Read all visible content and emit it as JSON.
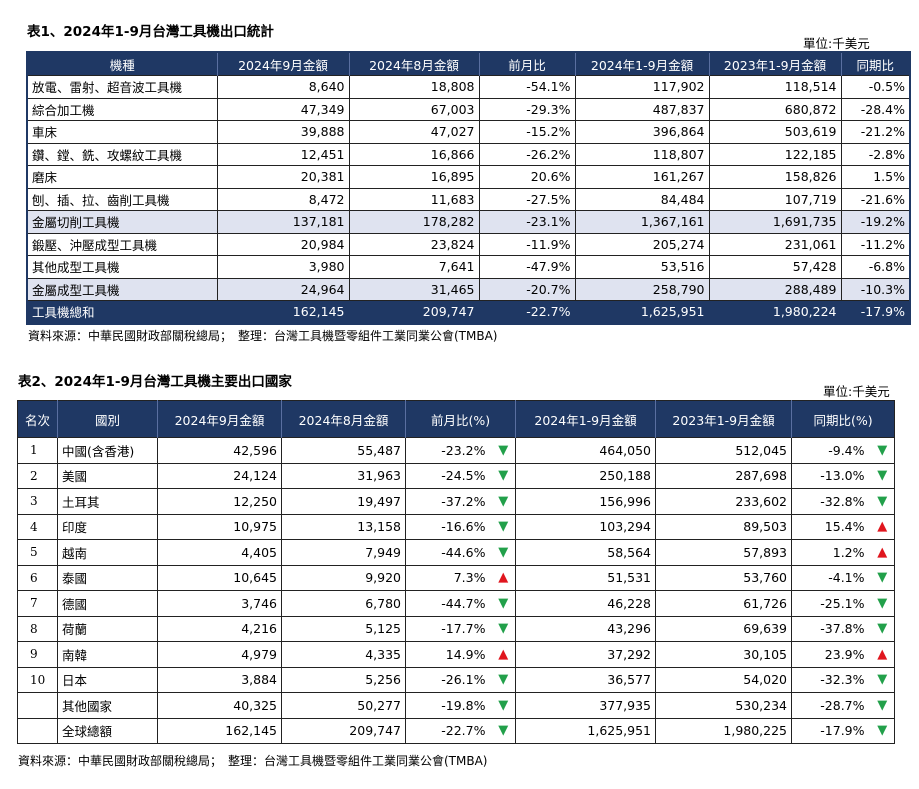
{
  "table1": {
    "title": "表1、2024年1-9月台灣工具機出口統計",
    "unit": "單位:千美元",
    "headers": [
      "機種",
      "2024年9月金額",
      "2024年8月金額",
      "前月比",
      "2024年1-9月金額",
      "2023年1-9月金額",
      "同期比"
    ],
    "rows": [
      {
        "cells": [
          "放電、雷射、超音波工具機",
          "8,640",
          "18,808",
          "-54.1%",
          "117,902",
          "118,514",
          "-0.5%"
        ]
      },
      {
        "cells": [
          "綜合加工機",
          "47,349",
          "67,003",
          "-29.3%",
          "487,837",
          "680,872",
          "-28.4%"
        ]
      },
      {
        "cells": [
          "車床",
          "39,888",
          "47,027",
          "-15.2%",
          "396,864",
          "503,619",
          "-21.2%"
        ]
      },
      {
        "cells": [
          "鑽、鏜、銑、攻螺紋工具機",
          "12,451",
          "16,866",
          "-26.2%",
          "118,807",
          "122,185",
          "-2.8%"
        ]
      },
      {
        "cells": [
          "磨床",
          "20,381",
          "16,895",
          "20.6%",
          "161,267",
          "158,826",
          "1.5%"
        ]
      },
      {
        "cells": [
          "刨、插、拉、齒削工具機",
          "8,472",
          "11,683",
          "-27.5%",
          "84,484",
          "107,719",
          "-21.6%"
        ]
      },
      {
        "cells": [
          "金屬切削工具機",
          "137,181",
          "178,282",
          "-23.1%",
          "1,367,161",
          "1,691,735",
          "-19.2%"
        ]
      },
      {
        "cells": [
          "鍛壓、沖壓成型工具機",
          "20,984",
          "23,824",
          "-11.9%",
          "205,274",
          "231,061",
          "-11.2%"
        ]
      },
      {
        "cells": [
          "其他成型工具機",
          "3,980",
          "7,641",
          "-47.9%",
          "53,516",
          "57,428",
          "-6.8%"
        ]
      },
      {
        "cells": [
          "金屬成型工具機",
          "24,964",
          "31,465",
          "-20.7%",
          "258,790",
          "288,489",
          "-10.3%"
        ]
      },
      {
        "cells": [
          "工具機總和",
          "162,145",
          "209,747",
          "-22.7%",
          "1,625,951",
          "1,980,224",
          "-17.9%"
        ]
      }
    ],
    "source": "資料來源：中華民國財政部關稅總局；　整理：台灣工具機暨零組件工業同業公會(TMBA)"
  },
  "table2": {
    "title": "表2、2024年1-9月台灣工具機主要出口國家",
    "unit": "單位:千美元",
    "headers": [
      "名次",
      "國別",
      "2024年9月金額",
      "2024年8月金額",
      "前月比(%)",
      "2024年1-9月金額",
      "2023年1-9月金額",
      "同期比(%)"
    ],
    "arrow_up": "▲",
    "arrow_down": "▼",
    "colors": {
      "up": "#e0161e",
      "down": "#22a04a",
      "header": "#1f3864",
      "subtotal": "#dfe3f0"
    },
    "rows": [
      {
        "rank": "1",
        "country": "中國(含香港)",
        "sep": "42,596",
        "aug": "55,487",
        "mom": "-23.2%",
        "mom_dir": "down",
        "ytd2024": "464,050",
        "ytd2023": "512,045",
        "yoy": "-9.4%",
        "yoy_dir": "down"
      },
      {
        "rank": "2",
        "country": "美國",
        "sep": "24,124",
        "aug": "31,963",
        "mom": "-24.5%",
        "mom_dir": "down",
        "ytd2024": "250,188",
        "ytd2023": "287,698",
        "yoy": "-13.0%",
        "yoy_dir": "down"
      },
      {
        "rank": "3",
        "country": "土耳其",
        "sep": "12,250",
        "aug": "19,497",
        "mom": "-37.2%",
        "mom_dir": "down",
        "ytd2024": "156,996",
        "ytd2023": "233,602",
        "yoy": "-32.8%",
        "yoy_dir": "down"
      },
      {
        "rank": "4",
        "country": "印度",
        "sep": "10,975",
        "aug": "13,158",
        "mom": "-16.6%",
        "mom_dir": "down",
        "ytd2024": "103,294",
        "ytd2023": "89,503",
        "yoy": "15.4%",
        "yoy_dir": "up"
      },
      {
        "rank": "5",
        "country": "越南",
        "sep": "4,405",
        "aug": "7,949",
        "mom": "-44.6%",
        "mom_dir": "down",
        "ytd2024": "58,564",
        "ytd2023": "57,893",
        "yoy": "1.2%",
        "yoy_dir": "up"
      },
      {
        "rank": "6",
        "country": "泰國",
        "sep": "10,645",
        "aug": "9,920",
        "mom": "7.3%",
        "mom_dir": "up",
        "ytd2024": "51,531",
        "ytd2023": "53,760",
        "yoy": "-4.1%",
        "yoy_dir": "down"
      },
      {
        "rank": "7",
        "country": "德國",
        "sep": "3,746",
        "aug": "6,780",
        "mom": "-44.7%",
        "mom_dir": "down",
        "ytd2024": "46,228",
        "ytd2023": "61,726",
        "yoy": "-25.1%",
        "yoy_dir": "down"
      },
      {
        "rank": "8",
        "country": "荷蘭",
        "sep": "4,216",
        "aug": "5,125",
        "mom": "-17.7%",
        "mom_dir": "down",
        "ytd2024": "43,296",
        "ytd2023": "69,639",
        "yoy": "-37.8%",
        "yoy_dir": "down"
      },
      {
        "rank": "9",
        "country": "南韓",
        "sep": "4,979",
        "aug": "4,335",
        "mom": "14.9%",
        "mom_dir": "up",
        "ytd2024": "37,292",
        "ytd2023": "30,105",
        "yoy": "23.9%",
        "yoy_dir": "up"
      },
      {
        "rank": "10",
        "country": "日本",
        "sep": "3,884",
        "aug": "5,256",
        "mom": "-26.1%",
        "mom_dir": "down",
        "ytd2024": "36,577",
        "ytd2023": "54,020",
        "yoy": "-32.3%",
        "yoy_dir": "down"
      },
      {
        "rank": "",
        "country": "其他國家",
        "sep": "40,325",
        "aug": "50,277",
        "mom": "-19.8%",
        "mom_dir": "down",
        "ytd2024": "377,935",
        "ytd2023": "530,234",
        "yoy": "-28.7%",
        "yoy_dir": "down"
      },
      {
        "rank": "",
        "country": "全球總額",
        "sep": "162,145",
        "aug": "209,747",
        "mom": "-22.7%",
        "mom_dir": "down",
        "ytd2024": "1,625,951",
        "ytd2023": "1,980,225",
        "yoy": "-17.9%",
        "yoy_dir": "down"
      }
    ],
    "source": "資料來源：中華民國財政部關稅總局；　整理：台灣工具機暨零組件工業同業公會(TMBA)"
  }
}
